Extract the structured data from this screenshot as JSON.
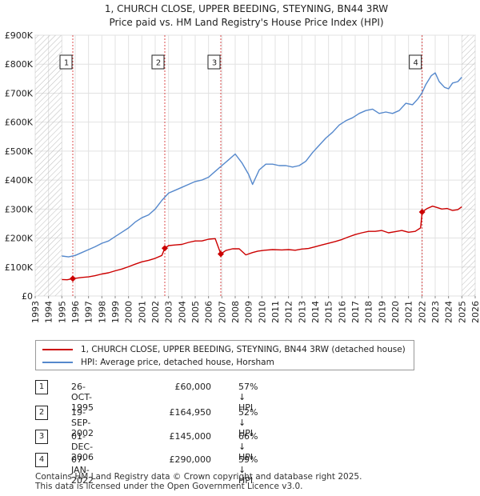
{
  "chart_data": {
    "type": "line",
    "title": "1, CHURCH CLOSE, UPPER BEEDING, STEYNING, BN44 3RW",
    "subtitle": "Price paid vs. HM Land Registry's House Price Index (HPI)",
    "xlim": [
      1993,
      2026
    ],
    "ylim": [
      0,
      900000
    ],
    "x_ticks": [
      "1993",
      "1994",
      "1995",
      "1996",
      "1997",
      "1998",
      "1999",
      "2000",
      "2001",
      "2002",
      "2003",
      "2004",
      "2005",
      "2006",
      "2007",
      "2008",
      "2009",
      "2010",
      "2011",
      "2012",
      "2013",
      "2014",
      "2015",
      "2016",
      "2017",
      "2018",
      "2019",
      "2020",
      "2021",
      "2022",
      "2023",
      "2024",
      "2025",
      "2026"
    ],
    "y_ticks": [
      {
        "value": 0,
        "label": "£0"
      },
      {
        "value": 100000,
        "label": "£100K"
      },
      {
        "value": 200000,
        "label": "£200K"
      },
      {
        "value": 300000,
        "label": "£300K"
      },
      {
        "value": 400000,
        "label": "£400K"
      },
      {
        "value": 500000,
        "label": "£500K"
      },
      {
        "value": 600000,
        "label": "£600K"
      },
      {
        "value": 700000,
        "label": "£700K"
      },
      {
        "value": 800000,
        "label": "£800K"
      },
      {
        "value": 900000,
        "label": "£900K"
      }
    ],
    "hatched_ranges": [
      [
        1993,
        1995.0
      ],
      [
        2025.0,
        2026
      ]
    ],
    "series": [
      {
        "name": "1, CHURCH CLOSE, UPPER BEEDING, STEYNING, BN44 3RW (detached house)",
        "color": "#cc0000",
        "x": [
          1995.0,
          1995.4,
          1995.82,
          1996.5,
          1997.0,
          1997.5,
          1998.0,
          1998.5,
          1999.0,
          1999.5,
          2000.0,
          2000.5,
          2001.0,
          2001.5,
          2002.0,
          2002.5,
          2002.72,
          2003.0,
          2003.5,
          2004.0,
          2004.5,
          2005.0,
          2005.5,
          2006.0,
          2006.5,
          2006.92,
          2007.3,
          2007.8,
          2008.3,
          2008.8,
          2009.3,
          2009.7,
          2010.2,
          2010.8,
          2011.5,
          2012.0,
          2012.5,
          2013.0,
          2013.5,
          2014.0,
          2014.5,
          2015.0,
          2015.5,
          2016.0,
          2016.5,
          2017.0,
          2017.5,
          2018.0,
          2018.5,
          2019.0,
          2019.5,
          2020.0,
          2020.5,
          2021.0,
          2021.5,
          2021.9,
          2022.02,
          2022.4,
          2022.8,
          2023.1,
          2023.5,
          2023.9,
          2024.3,
          2024.7,
          2025.0
        ],
        "y": [
          57000,
          56000,
          60000,
          64000,
          66000,
          70000,
          76000,
          80000,
          87000,
          93000,
          101000,
          110000,
          118000,
          123000,
          130000,
          140000,
          164950,
          174000,
          176000,
          178000,
          185000,
          190000,
          190000,
          196000,
          198000,
          145000,
          157000,
          163000,
          163000,
          142000,
          150000,
          155000,
          158000,
          160000,
          159000,
          160000,
          158000,
          162000,
          164000,
          170000,
          176000,
          182000,
          188000,
          195000,
          204000,
          212000,
          218000,
          223000,
          223000,
          226000,
          218000,
          222000,
          226000,
          220000,
          223000,
          235000,
          290000,
          302000,
          310000,
          306000,
          300000,
          302000,
          295000,
          298000,
          308000
        ]
      },
      {
        "name": "HPI: Average price, detached house, Horsham",
        "color": "#5588cc",
        "x": [
          1995.0,
          1995.5,
          1996.0,
          1996.5,
          1997.0,
          1997.5,
          1998.0,
          1998.5,
          1999.0,
          1999.5,
          2000.0,
          2000.5,
          2001.0,
          2001.5,
          2002.0,
          2002.5,
          2003.0,
          2003.5,
          2004.0,
          2004.5,
          2005.0,
          2005.5,
          2006.0,
          2006.5,
          2007.0,
          2007.5,
          2008.0,
          2008.5,
          2009.0,
          2009.3,
          2009.8,
          2010.3,
          2010.8,
          2011.3,
          2011.8,
          2012.3,
          2012.8,
          2013.3,
          2013.8,
          2014.3,
          2014.8,
          2015.3,
          2015.8,
          2016.3,
          2016.8,
          2017.3,
          2017.8,
          2018.3,
          2018.8,
          2019.3,
          2019.8,
          2020.3,
          2020.8,
          2021.3,
          2021.7,
          2022.0,
          2022.3,
          2022.7,
          2023.0,
          2023.3,
          2023.7,
          2024.0,
          2024.3,
          2024.7,
          2025.0
        ],
        "y": [
          138000,
          135000,
          140000,
          150000,
          160000,
          170000,
          182000,
          190000,
          205000,
          220000,
          235000,
          255000,
          270000,
          280000,
          300000,
          330000,
          355000,
          365000,
          375000,
          385000,
          395000,
          400000,
          410000,
          430000,
          450000,
          470000,
          490000,
          460000,
          420000,
          385000,
          435000,
          455000,
          455000,
          450000,
          450000,
          445000,
          450000,
          465000,
          495000,
          520000,
          545000,
          565000,
          590000,
          605000,
          615000,
          630000,
          640000,
          645000,
          630000,
          635000,
          630000,
          640000,
          665000,
          660000,
          680000,
          700000,
          730000,
          760000,
          770000,
          740000,
          720000,
          715000,
          735000,
          740000,
          755000
        ]
      }
    ],
    "sales": [
      {
        "num": "1",
        "x": 1995.82,
        "y": 60000
      },
      {
        "num": "2",
        "x": 2002.72,
        "y": 164950
      },
      {
        "num": "3",
        "x": 2006.92,
        "y": 145000
      },
      {
        "num": "4",
        "x": 2022.02,
        "y": 290000
      }
    ]
  },
  "legend": {
    "property_label": "1, CHURCH CLOSE, UPPER BEEDING, STEYNING, BN44 3RW (detached house)",
    "hpi_label": "HPI: Average price, detached house, Horsham"
  },
  "transactions": [
    {
      "num": "1",
      "date": "26-OCT-1995",
      "price": "£60,000",
      "hpi": "57% ↓ HPI"
    },
    {
      "num": "2",
      "date": "19-SEP-2002",
      "price": "£164,950",
      "hpi": "52% ↓ HPI"
    },
    {
      "num": "3",
      "date": "01-DEC-2006",
      "price": "£145,000",
      "hpi": "66% ↓ HPI"
    },
    {
      "num": "4",
      "date": "07-JAN-2022",
      "price": "£290,000",
      "hpi": "59% ↓ HPI"
    }
  ],
  "footer": {
    "line1": "Contains HM Land Registry data © Crown copyright and database right 2025.",
    "line2": "This data is licensed under the Open Government Licence v3.0."
  }
}
